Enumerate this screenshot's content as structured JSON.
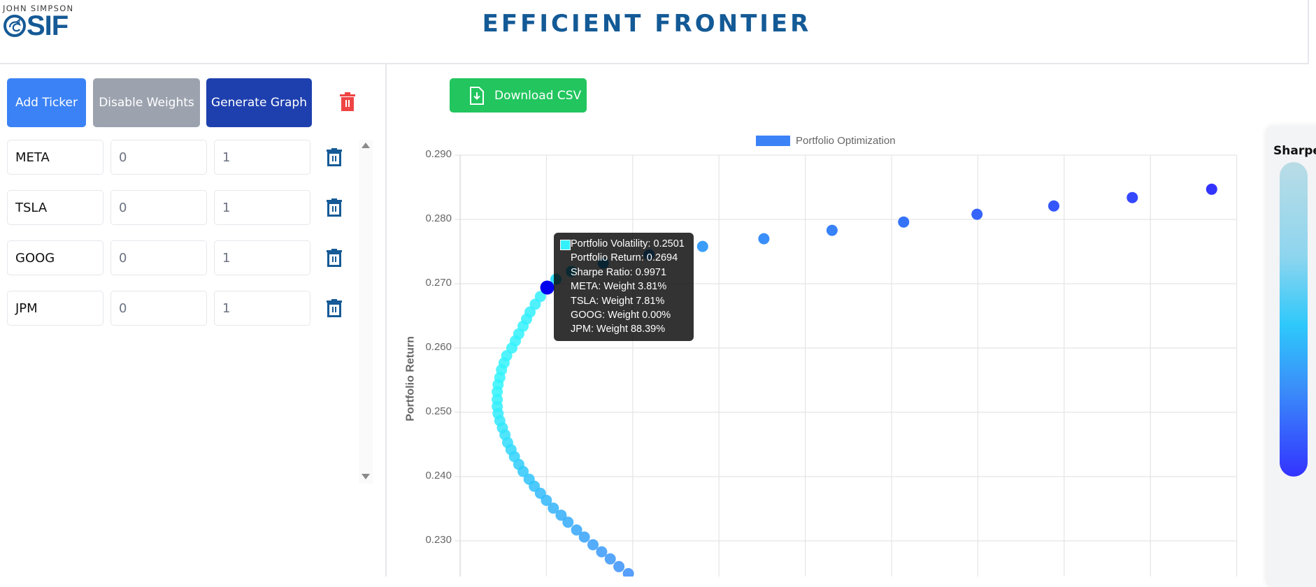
{
  "header": {
    "logo_top": "JOHN SIMPSON",
    "logo_main": "SIF",
    "title": "EFFICIENT FRONTIER"
  },
  "toolbar": {
    "add_ticker_label": "Add Ticker",
    "disable_weights_label": "Disable Weights",
    "generate_graph_label": "Generate Graph",
    "clear_all_icon": "trash-icon",
    "download_csv_label": "Download CSV"
  },
  "tickers": [
    {
      "symbol": "META",
      "min": "0",
      "max": "1"
    },
    {
      "symbol": "TSLA",
      "min": "0",
      "max": "1"
    },
    {
      "symbol": "GOOG",
      "min": "0",
      "max": "1"
    },
    {
      "symbol": "JPM",
      "min": "0",
      "max": "1"
    }
  ],
  "colors": {
    "brand": "#135a96",
    "add_button": "#3b82f6",
    "disable_button": "#9ca3af",
    "generate_button": "#1e40af",
    "download_button": "#22c55e",
    "delete_red": "#ef4444",
    "delete_blue": "#155a96",
    "highlight_point": "#0000ee"
  },
  "sharpe_legend": {
    "title": "Sharpe"
  },
  "tooltip": {
    "swatch_color": "#33f0fa",
    "lines": [
      "Portfolio Volatility: 0.2501",
      "Portfolio Return: 0.2694",
      "Sharpe Ratio: 0.9971",
      "META: Weight 3.81%",
      "TSLA: Weight 7.81%",
      "GOOG: Weight 0.00%",
      "JPM: Weight 88.39%"
    ]
  },
  "chart_data": {
    "type": "scatter",
    "title": "",
    "legend": [
      {
        "label": "Portfolio Optimization",
        "color": "#3b82f6"
      }
    ],
    "legend_position": "top",
    "xlabel": "",
    "ylabel": "Portfolio Return",
    "yticks": [
      "0.290",
      "0.280",
      "0.270",
      "0.260",
      "0.250",
      "0.240",
      "0.230"
    ],
    "ylim": [
      0.2245,
      0.29
    ],
    "xlim": [
      0.24,
      0.3296
    ],
    "grid": true,
    "highlighted": {
      "volatility": 0.2501,
      "return": 0.2694,
      "sharpe": 0.9971
    },
    "points": [
      {
        "vol": 0.2595,
        "ret": 0.2249,
        "c": "#3a8ef9"
      },
      {
        "vol": 0.2584,
        "ret": 0.226,
        "c": "#3a92f9"
      },
      {
        "vol": 0.2574,
        "ret": 0.2272,
        "c": "#3996f9"
      },
      {
        "vol": 0.2564,
        "ret": 0.2283,
        "c": "#389afa"
      },
      {
        "vol": 0.2554,
        "ret": 0.2294,
        "c": "#379efa"
      },
      {
        "vol": 0.2544,
        "ret": 0.2306,
        "c": "#36a2fa"
      },
      {
        "vol": 0.2535,
        "ret": 0.2317,
        "c": "#35a6fa"
      },
      {
        "vol": 0.2525,
        "ret": 0.2329,
        "c": "#34aafa"
      },
      {
        "vol": 0.2517,
        "ret": 0.234,
        "c": "#33aefa"
      },
      {
        "vol": 0.2508,
        "ret": 0.2351,
        "c": "#32b3fa"
      },
      {
        "vol": 0.25,
        "ret": 0.2363,
        "c": "#31b7fb"
      },
      {
        "vol": 0.2493,
        "ret": 0.2374,
        "c": "#30bbfb"
      },
      {
        "vol": 0.2486,
        "ret": 0.2385,
        "c": "#2fc0fb"
      },
      {
        "vol": 0.248,
        "ret": 0.2396,
        "c": "#2fc4fb"
      },
      {
        "vol": 0.2473,
        "ret": 0.2408,
        "c": "#2ec8fb"
      },
      {
        "vol": 0.2468,
        "ret": 0.2419,
        "c": "#30cdfb"
      },
      {
        "vol": 0.2463,
        "ret": 0.2431,
        "c": "#30d2fb"
      },
      {
        "vol": 0.2459,
        "ret": 0.2442,
        "c": "#31d7fb"
      },
      {
        "vol": 0.2455,
        "ret": 0.2453,
        "c": "#31dcfb"
      },
      {
        "vol": 0.2452,
        "ret": 0.2465,
        "c": "#32e0fb"
      },
      {
        "vol": 0.2449,
        "ret": 0.2476,
        "c": "#32e4fb"
      },
      {
        "vol": 0.2446,
        "ret": 0.2487,
        "c": "#33e8fb"
      },
      {
        "vol": 0.2444,
        "ret": 0.2498,
        "c": "#33ecfb"
      },
      {
        "vol": 0.2443,
        "ret": 0.2509,
        "c": "#33effb"
      },
      {
        "vol": 0.2443,
        "ret": 0.252,
        "c": "#33f1fb"
      },
      {
        "vol": 0.2443,
        "ret": 0.2532,
        "c": "#33f3fb"
      },
      {
        "vol": 0.2444,
        "ret": 0.2543,
        "c": "#33f3fb"
      },
      {
        "vol": 0.2446,
        "ret": 0.2554,
        "c": "#33f3fb"
      },
      {
        "vol": 0.2448,
        "ret": 0.2566,
        "c": "#33f3fb"
      },
      {
        "vol": 0.2451,
        "ret": 0.2577,
        "c": "#33f3fb"
      },
      {
        "vol": 0.2454,
        "ret": 0.2588,
        "c": "#33f2fb"
      },
      {
        "vol": 0.246,
        "ret": 0.26,
        "c": "#33f2fb"
      },
      {
        "vol": 0.2464,
        "ret": 0.2611,
        "c": "#33f2fb"
      },
      {
        "vol": 0.2468,
        "ret": 0.2622,
        "c": "#33f1fb"
      },
      {
        "vol": 0.2473,
        "ret": 0.2634,
        "c": "#33f1fb"
      },
      {
        "vol": 0.2477,
        "ret": 0.2645,
        "c": "#33f0fb"
      },
      {
        "vol": 0.2481,
        "ret": 0.2656,
        "c": "#33f0fb"
      },
      {
        "vol": 0.2487,
        "ret": 0.2668,
        "c": "#33effb"
      },
      {
        "vol": 0.2493,
        "ret": 0.268,
        "c": "#33eefb"
      },
      {
        "vol": 0.2501,
        "ret": 0.2694,
        "c": "#0000ee",
        "highlight": true
      },
      {
        "vol": 0.2511,
        "ret": 0.2707,
        "c": "#33e0fb"
      },
      {
        "vol": 0.2529,
        "ret": 0.2719,
        "c": "#33cdfb"
      },
      {
        "vol": 0.2566,
        "ret": 0.2732,
        "c": "#31b4fa"
      },
      {
        "vol": 0.2619,
        "ret": 0.2745,
        "c": "#36a6fa"
      },
      {
        "vol": 0.2681,
        "ret": 0.2758,
        "c": "#3a9dfa"
      },
      {
        "vol": 0.2752,
        "ret": 0.277,
        "c": "#3a8ef9"
      },
      {
        "vol": 0.2831,
        "ret": 0.2783,
        "c": "#3781f9"
      },
      {
        "vol": 0.2914,
        "ret": 0.2796,
        "c": "#3573fa"
      },
      {
        "vol": 0.2999,
        "ret": 0.2808,
        "c": "#3565fb"
      },
      {
        "vol": 0.3088,
        "ret": 0.2821,
        "c": "#3457fc"
      },
      {
        "vol": 0.3179,
        "ret": 0.2834,
        "c": "#3448fd"
      },
      {
        "vol": 0.3271,
        "ret": 0.2847,
        "c": "#3333ff"
      }
    ],
    "hidden_under_tooltip": [
      2,
      3,
      4,
      5
    ]
  }
}
